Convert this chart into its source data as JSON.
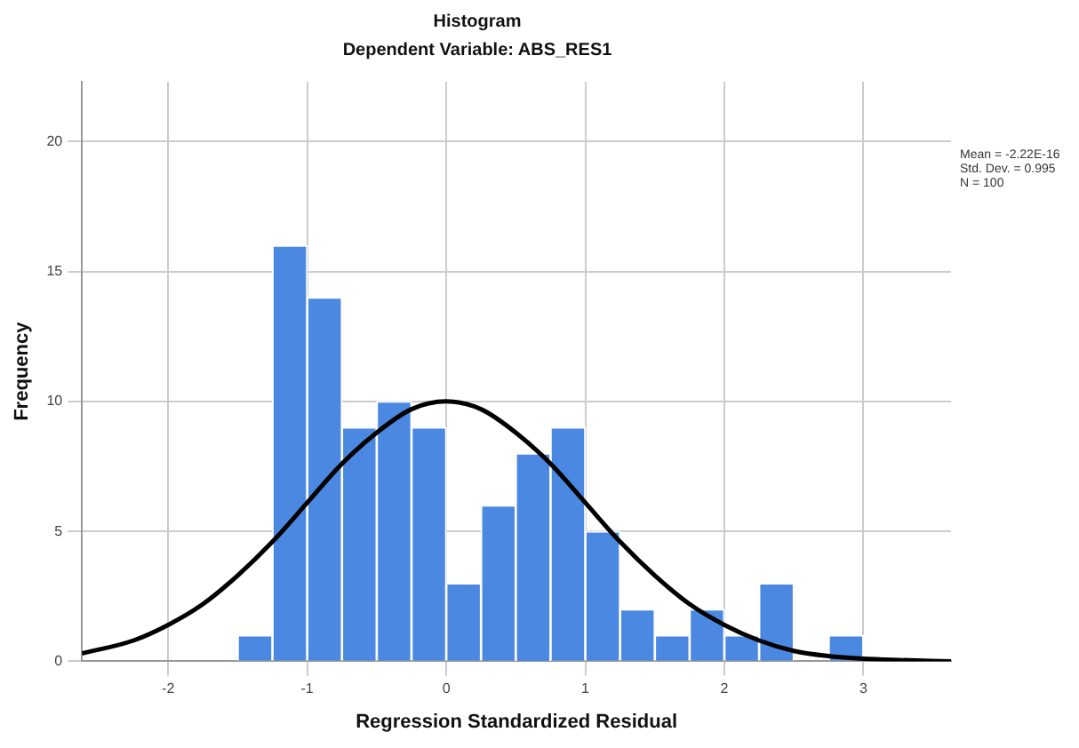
{
  "chart_data": {
    "type": "histogram",
    "title": "Histogram",
    "subtitle": "Dependent Variable: ABS_RES1",
    "xlabel": "Regression Standardized Residual",
    "ylabel": "Frequency",
    "bins": [
      -1.5,
      -1.25,
      -1,
      -0.75,
      -0.5,
      -0.25,
      0,
      0.25,
      0.5,
      0.75,
      1,
      1.25,
      1.5,
      1.75,
      2,
      2.25,
      2.5,
      2.75,
      3
    ],
    "values": [
      1,
      16,
      14,
      9,
      10,
      9,
      3,
      6,
      8,
      9,
      5,
      2,
      1,
      2,
      1,
      3,
      0,
      1
    ],
    "color": "#4a88e2",
    "series": [
      {
        "type": "line",
        "color": "#000000",
        "marker": "none",
        "x": [
          -2.62,
          -2.25,
          -2,
          -1.75,
          -1.5,
          -1.25,
          -1,
          -0.75,
          -0.5,
          -0.25,
          0,
          0.25,
          0.5,
          0.75,
          1,
          1.25,
          1.5,
          1.75,
          2,
          2.25,
          2.5,
          2.75,
          3,
          3.25,
          3.63
        ],
        "values": [
          0.3,
          0.8,
          1.4,
          2.2,
          3.3,
          4.6,
          6.1,
          7.6,
          8.8,
          9.7,
          10,
          9.7,
          8.8,
          7.6,
          6.1,
          4.6,
          3.3,
          2.2,
          1.4,
          0.8,
          0.4,
          0.2,
          0.1,
          0.05,
          0
        ]
      }
    ],
    "xlim": [
      -2.62,
      3.63
    ],
    "xticks": [
      -2,
      -1,
      0,
      1,
      2,
      3
    ],
    "ylim": [
      0,
      22.3
    ],
    "yticks": [
      0,
      5,
      10,
      15,
      20
    ],
    "grid": true,
    "annotations": [
      "Mean = -2.22E-16",
      "Std. Dev. = 0.995",
      "N = 100"
    ]
  }
}
